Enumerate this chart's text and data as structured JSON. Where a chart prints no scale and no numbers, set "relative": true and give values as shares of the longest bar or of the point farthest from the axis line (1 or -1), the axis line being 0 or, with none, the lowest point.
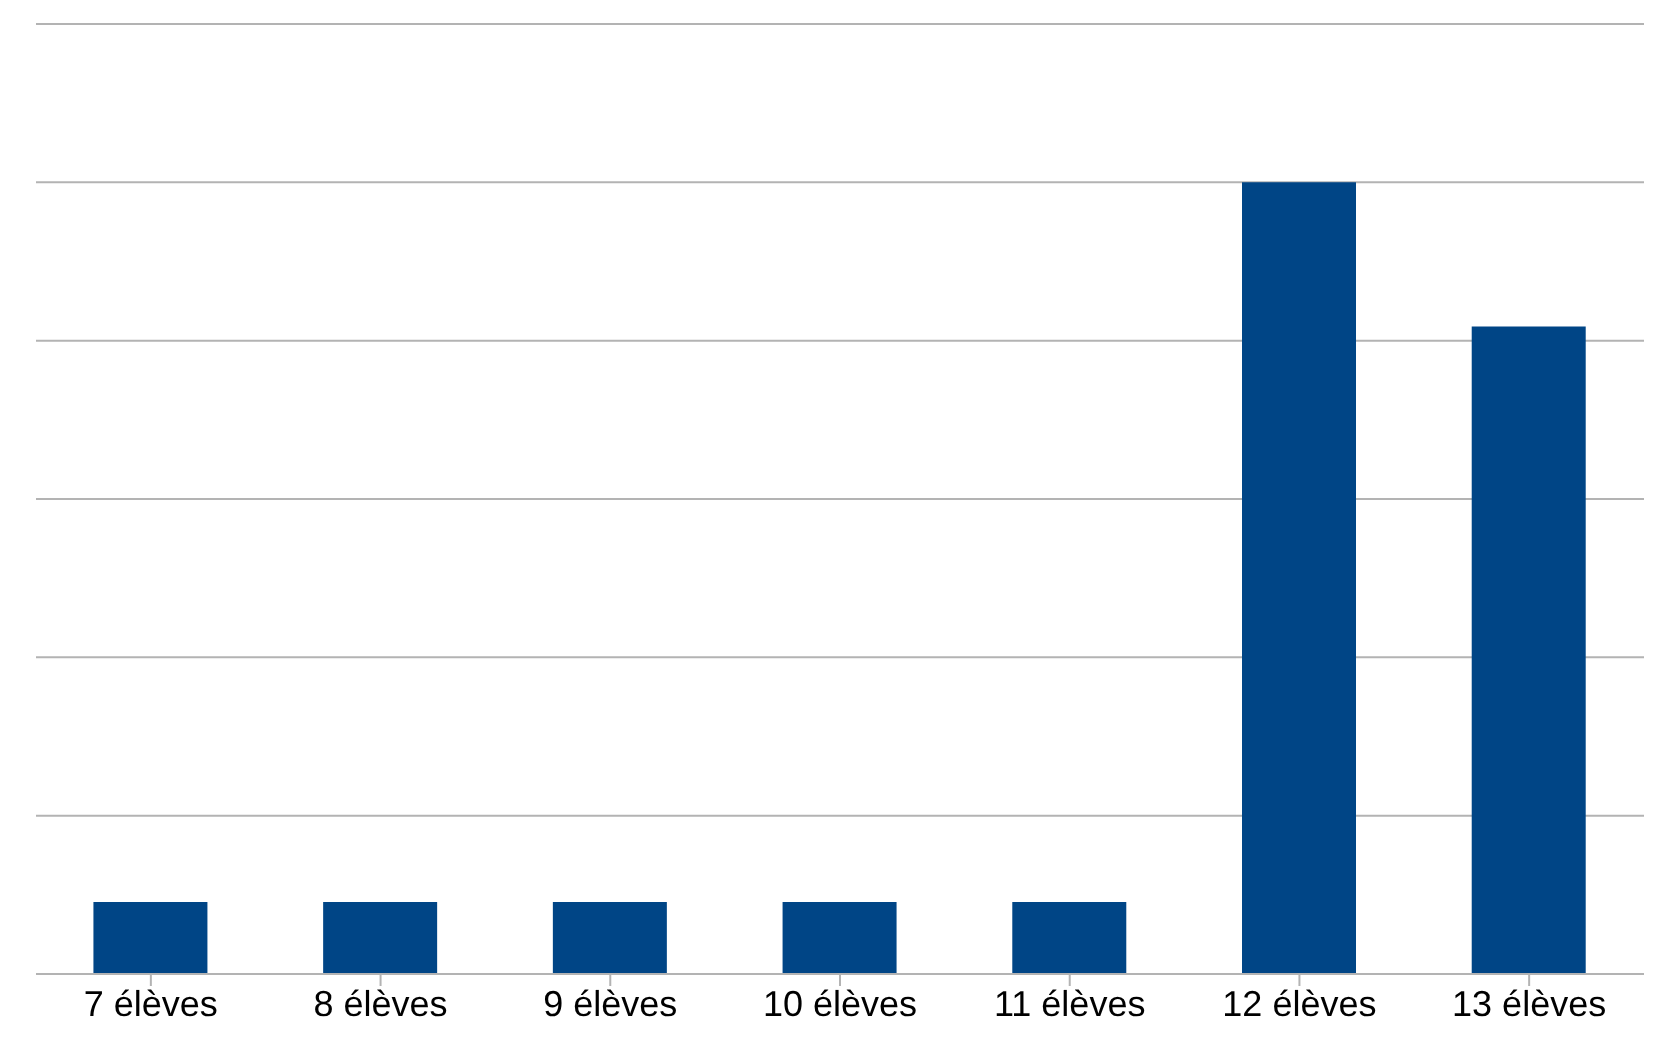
{
  "chart_data": {
    "type": "bar",
    "relative": true,
    "categories": [
      "7 élèves",
      "8 élèves",
      "9 élèves",
      "10 élèves",
      "11 élèves",
      "12 élèves",
      "13 élèves"
    ],
    "series": [
      {
        "color": "#004586",
        "values": [
          0.091,
          0.091,
          0.091,
          0.091,
          0.091,
          1,
          0.818
        ]
      }
    ],
    "grid": "y",
    "legend": false
  }
}
